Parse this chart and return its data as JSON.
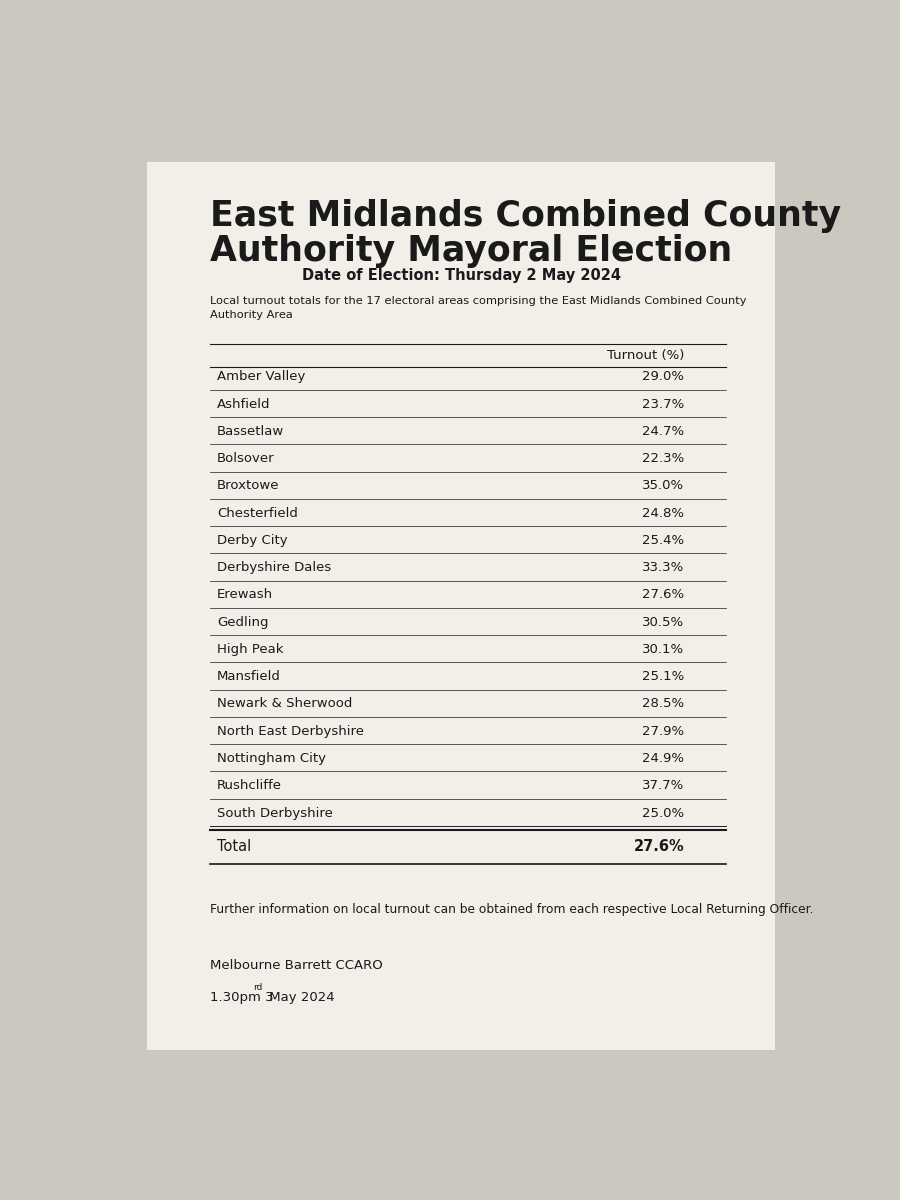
{
  "title_line1": "East Midlands Combined County",
  "title_line2": "Authority Mayoral Election",
  "date_line": "Date of Election: Thursday 2 May 2024",
  "subtitle": "Local turnout totals for the 17 electoral areas comprising the East Midlands Combined County\nAuthority Area",
  "col_header_turnout": "Turnout (%)",
  "areas": [
    "Amber Valley",
    "Ashfield",
    "Bassetlaw",
    "Bolsover",
    "Broxtowe",
    "Chesterfield",
    "Derby City",
    "Derbyshire Dales",
    "Erewash",
    "Gedling",
    "High Peak",
    "Mansfield",
    "Newark & Sherwood",
    "North East Derbyshire",
    "Nottingham City",
    "Rushcliffe",
    "South Derbyshire"
  ],
  "turnouts": [
    "29.0%",
    "23.7%",
    "24.7%",
    "22.3%",
    "35.0%",
    "24.8%",
    "25.4%",
    "33.3%",
    "27.6%",
    "30.5%",
    "30.1%",
    "25.1%",
    "28.5%",
    "27.9%",
    "24.9%",
    "37.7%",
    "25.0%"
  ],
  "total_label": "Total",
  "total_value": "27.6%",
  "footer1": "Further information on local turnout can be obtained from each respective Local Returning Officer.",
  "footer2": "Melbourne Barrett CCARO",
  "footer3_part1": "1.30pm 3",
  "footer3_super": "rd",
  "footer3_part2": " May 2024",
  "bg_color": "#ccc8c0",
  "paper_color": "#f2efe9",
  "text_color": "#1a1a1a"
}
